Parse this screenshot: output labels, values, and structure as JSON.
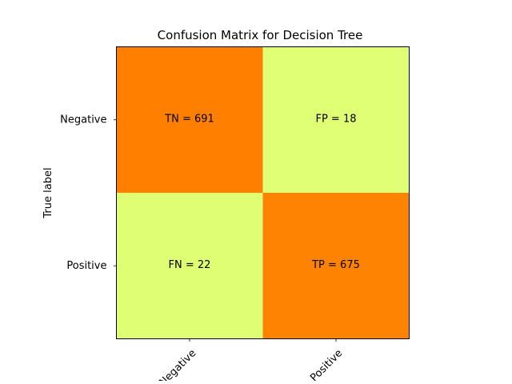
{
  "chart_data": {
    "type": "heatmap",
    "title": "Confusion Matrix for Decision Tree",
    "ylabel": "True label",
    "xlabel": "",
    "row_labels": [
      "Negative",
      "Positive"
    ],
    "col_labels": [
      "Negative",
      "Positive"
    ],
    "values": [
      [
        691,
        18
      ],
      [
        22,
        675
      ]
    ],
    "cell_text": [
      [
        "TN = 691",
        "FP = 18"
      ],
      [
        "FN = 22",
        "TP = 675"
      ]
    ],
    "colormap": {
      "low": "#e0ff75",
      "high": "#ff8000"
    },
    "grid": false
  }
}
